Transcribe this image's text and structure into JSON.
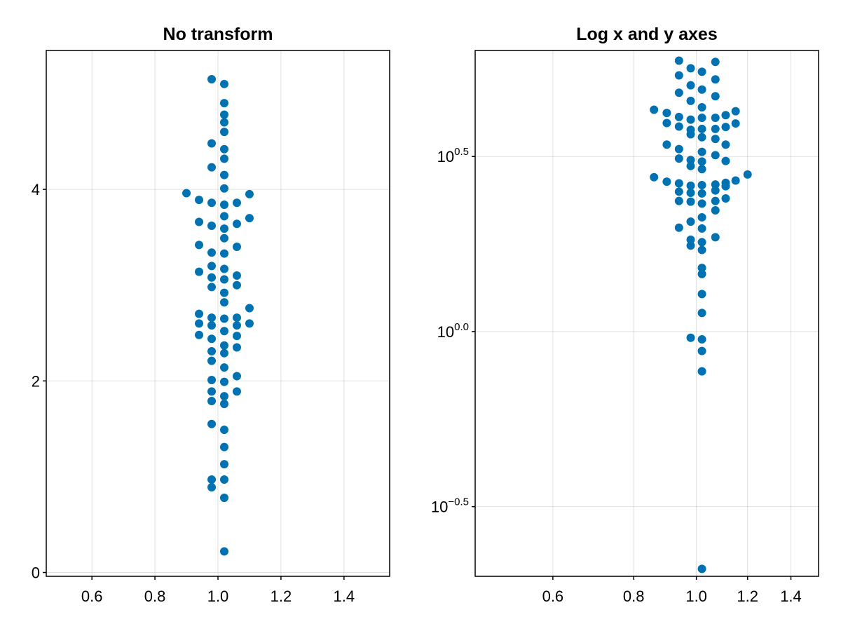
{
  "chart_data": [
    {
      "type": "scatter",
      "title": "No transform",
      "xlabel": "",
      "ylabel": "",
      "xscale": "linear",
      "yscale": "linear",
      "xlim": [
        0.455,
        1.545
      ],
      "ylim": [
        -0.04,
        5.45
      ],
      "grid": true,
      "legend": "none",
      "point_color": "#0072b2",
      "x_ticks": [
        0.6,
        0.8,
        1.0,
        1.2,
        1.4
      ],
      "x_tick_labels": [
        "0.6",
        "0.8",
        "1.0",
        "1.2",
        "1.4"
      ],
      "y_ticks": [
        0,
        2,
        4
      ],
      "y_tick_labels": [
        "0",
        "2",
        "4"
      ],
      "points": [
        [
          0.98,
          5.15
        ],
        [
          1.02,
          5.1
        ],
        [
          1.02,
          4.9
        ],
        [
          1.02,
          4.78
        ],
        [
          1.02,
          4.7
        ],
        [
          1.02,
          4.6
        ],
        [
          0.98,
          4.48
        ],
        [
          1.02,
          4.42
        ],
        [
          1.02,
          4.32
        ],
        [
          0.98,
          4.23
        ],
        [
          1.02,
          4.15
        ],
        [
          1.02,
          4.01
        ],
        [
          0.9,
          3.96
        ],
        [
          1.1,
          3.95
        ],
        [
          0.94,
          3.89
        ],
        [
          0.98,
          3.86
        ],
        [
          1.02,
          3.84
        ],
        [
          1.06,
          3.86
        ],
        [
          1.02,
          3.72
        ],
        [
          1.1,
          3.7
        ],
        [
          0.94,
          3.66
        ],
        [
          0.98,
          3.62
        ],
        [
          1.06,
          3.64
        ],
        [
          1.02,
          3.59
        ],
        [
          1.02,
          3.49
        ],
        [
          0.94,
          3.42
        ],
        [
          1.06,
          3.4
        ],
        [
          0.98,
          3.34
        ],
        [
          1.02,
          3.33
        ],
        [
          0.98,
          3.2
        ],
        [
          1.02,
          3.17
        ],
        [
          0.94,
          3.14
        ],
        [
          1.06,
          3.1
        ],
        [
          0.98,
          3.08
        ],
        [
          1.02,
          3.06
        ],
        [
          0.98,
          2.98
        ],
        [
          1.06,
          3.0
        ],
        [
          1.02,
          2.92
        ],
        [
          1.02,
          2.82
        ],
        [
          1.1,
          2.76
        ],
        [
          0.94,
          2.7
        ],
        [
          0.98,
          2.66
        ],
        [
          1.02,
          2.65
        ],
        [
          1.06,
          2.66
        ],
        [
          0.94,
          2.6
        ],
        [
          0.98,
          2.58
        ],
        [
          1.06,
          2.58
        ],
        [
          1.1,
          2.6
        ],
        [
          1.02,
          2.52
        ],
        [
          0.94,
          2.48
        ],
        [
          0.98,
          2.44
        ],
        [
          1.06,
          2.47
        ],
        [
          1.02,
          2.37
        ],
        [
          1.06,
          2.35
        ],
        [
          0.98,
          2.31
        ],
        [
          1.02,
          2.29
        ],
        [
          0.98,
          2.21
        ],
        [
          1.02,
          2.14
        ],
        [
          1.06,
          2.05
        ],
        [
          0.98,
          2.01
        ],
        [
          1.02,
          1.99
        ],
        [
          0.98,
          1.89
        ],
        [
          1.06,
          1.89
        ],
        [
          1.02,
          1.84
        ],
        [
          0.98,
          1.79
        ],
        [
          1.02,
          1.76
        ],
        [
          0.98,
          1.55
        ],
        [
          1.02,
          1.49
        ],
        [
          1.02,
          1.31
        ],
        [
          1.02,
          1.13
        ],
        [
          0.98,
          0.97
        ],
        [
          1.02,
          0.97
        ],
        [
          0.98,
          0.89
        ],
        [
          1.02,
          0.78
        ],
        [
          1.02,
          0.22
        ]
      ]
    },
    {
      "type": "scatter",
      "title": "Log x and y axes",
      "xlabel": "",
      "ylabel": "",
      "xscale": "log10",
      "yscale": "log10",
      "xlim": [
        0.455,
        1.545
      ],
      "ylim": [
        0.2,
        6.35
      ],
      "grid": true,
      "legend": "none",
      "point_color": "#0072b2",
      "x_ticks": [
        0.6,
        0.8,
        1.0,
        1.2,
        1.4
      ],
      "x_tick_labels": [
        "0.6",
        "0.8",
        "1.0",
        "1.2",
        "1.4"
      ],
      "y_ticks": [
        0.31623,
        1.0,
        3.16228
      ],
      "y_tick_labels": [
        {
          "base": "10",
          "exp": "−0.5"
        },
        {
          "base": "10",
          "exp": "0.0"
        },
        {
          "base": "10",
          "exp": "0.5"
        }
      ],
      "points": [
        [
          0.94,
          5.94
        ],
        [
          1.07,
          5.89
        ],
        [
          0.98,
          5.65
        ],
        [
          1.02,
          5.52
        ],
        [
          0.94,
          5.39
        ],
        [
          1.07,
          5.25
        ],
        [
          0.98,
          5.05
        ],
        [
          1.02,
          4.91
        ],
        [
          0.94,
          4.81
        ],
        [
          1.07,
          4.7
        ],
        [
          0.98,
          4.56
        ],
        [
          1.02,
          4.37
        ],
        [
          0.86,
          4.3
        ],
        [
          1.15,
          4.26
        ],
        [
          0.9,
          4.21
        ],
        [
          0.94,
          4.1
        ],
        [
          0.98,
          4.03
        ],
        [
          1.02,
          4.08
        ],
        [
          1.07,
          4.08
        ],
        [
          1.11,
          4.15
        ],
        [
          0.9,
          3.94
        ],
        [
          1.15,
          3.93
        ],
        [
          0.94,
          3.85
        ],
        [
          0.98,
          3.77
        ],
        [
          1.02,
          3.79
        ],
        [
          1.07,
          3.79
        ],
        [
          1.11,
          3.84
        ],
        [
          0.98,
          3.66
        ],
        [
          1.02,
          3.59
        ],
        [
          1.07,
          3.55
        ],
        [
          0.9,
          3.42
        ],
        [
          1.11,
          3.42
        ],
        [
          0.94,
          3.32
        ],
        [
          1.02,
          3.26
        ],
        [
          1.07,
          3.19
        ],
        [
          0.94,
          3.12
        ],
        [
          0.98,
          3.09
        ],
        [
          1.02,
          3.06
        ],
        [
          1.11,
          3.07
        ],
        [
          0.98,
          2.97
        ],
        [
          1.02,
          2.91
        ],
        [
          0.86,
          2.76
        ],
        [
          1.2,
          2.81
        ],
        [
          0.9,
          2.68
        ],
        [
          1.15,
          2.7
        ],
        [
          0.94,
          2.65
        ],
        [
          0.98,
          2.61
        ],
        [
          1.02,
          2.62
        ],
        [
          1.07,
          2.63
        ],
        [
          1.11,
          2.66
        ],
        [
          1.11,
          2.6
        ],
        [
          0.94,
          2.51
        ],
        [
          0.98,
          2.49
        ],
        [
          1.02,
          2.48
        ],
        [
          1.07,
          2.53
        ],
        [
          0.94,
          2.36
        ],
        [
          0.98,
          2.35
        ],
        [
          1.02,
          2.32
        ],
        [
          1.07,
          2.36
        ],
        [
          1.11,
          2.4
        ],
        [
          1.07,
          2.22
        ],
        [
          1.02,
          2.12
        ],
        [
          0.98,
          2.06
        ],
        [
          0.94,
          1.98
        ],
        [
          1.02,
          1.97
        ],
        [
          1.07,
          1.86
        ],
        [
          0.98,
          1.83
        ],
        [
          1.02,
          1.8
        ],
        [
          0.98,
          1.76
        ],
        [
          1.02,
          1.71
        ],
        [
          1.02,
          1.52
        ],
        [
          1.02,
          1.46
        ],
        [
          1.02,
          1.28
        ],
        [
          1.02,
          1.13
        ],
        [
          0.98,
          0.96
        ],
        [
          1.02,
          0.95
        ],
        [
          1.02,
          0.88
        ],
        [
          1.02,
          0.77
        ],
        [
          1.02,
          0.21
        ]
      ]
    }
  ]
}
